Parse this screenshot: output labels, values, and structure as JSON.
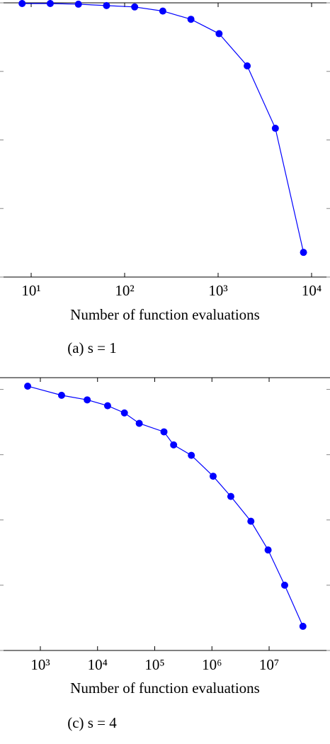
{
  "chart_data": [
    {
      "type": "line",
      "caption": "(a) s = 1",
      "x_label": "Number of function evaluations",
      "log_x": true,
      "xlim": [
        4.64,
        15740
      ],
      "xticks": [
        {
          "value": 10,
          "label": "10¹"
        },
        {
          "value": 100,
          "label": "10²"
        },
        {
          "value": 1000,
          "label": "10³"
        },
        {
          "value": 10000,
          "label": "10⁴"
        }
      ],
      "ylim": [
        0,
        4
      ],
      "yticks": [
        0,
        1,
        2,
        3,
        4
      ],
      "x": [
        8,
        16,
        32,
        64,
        128,
        256,
        512,
        1024,
        2048,
        4096,
        8192
      ],
      "color": "#0000ff",
      "values": [
        3.99,
        3.99,
        3.98,
        3.96,
        3.94,
        3.88,
        3.76,
        3.55,
        3.08,
        2.17,
        0.36
      ]
    },
    {
      "type": "line",
      "caption": "(c) s = 4",
      "x_label": "Number of function evaluations",
      "log_x": true,
      "xlim": [
        197,
        116000000
      ],
      "xticks": [
        {
          "value": 1000,
          "label": "10³"
        },
        {
          "value": 10000,
          "label": "10⁴"
        },
        {
          "value": 100000,
          "label": "10⁵"
        },
        {
          "value": 1000000,
          "label": "10⁶"
        },
        {
          "value": 10000000,
          "label": "10⁷"
        }
      ],
      "ylim": [
        0,
        4.18
      ],
      "yticks": [
        0,
        1,
        2,
        3,
        4
      ],
      "x": [
        600,
        2350,
        6600,
        15000,
        29500,
        53600,
        145000,
        214000,
        437000,
        1050000,
        2140000,
        4800000,
        9600000,
        18700000,
        39000000
      ],
      "color": "#0000ff",
      "values": [
        4.05,
        3.91,
        3.84,
        3.75,
        3.64,
        3.48,
        3.35,
        3.15,
        2.99,
        2.67,
        2.36,
        1.98,
        1.54,
        1.0,
        0.37
      ]
    }
  ]
}
